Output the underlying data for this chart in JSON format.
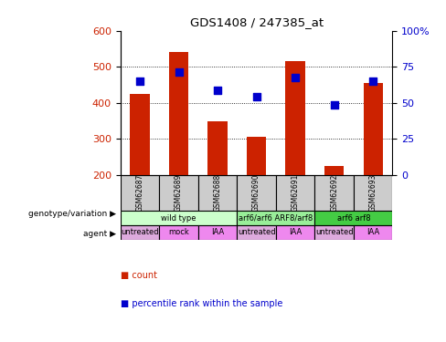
{
  "title": "GDS1408 / 247385_at",
  "samples": [
    "GSM62687",
    "GSM62689",
    "GSM62688",
    "GSM62690",
    "GSM62691",
    "GSM62692",
    "GSM62693"
  ],
  "bar_bottom": 200,
  "bar_tops": [
    425,
    540,
    348,
    305,
    515,
    225,
    455
  ],
  "percentile_values": [
    460,
    485,
    435,
    418,
    470,
    395,
    460
  ],
  "ylim_left": [
    200,
    600
  ],
  "yticks_left": [
    200,
    300,
    400,
    500,
    600
  ],
  "ylim_right": [
    0,
    100
  ],
  "yticks_right": [
    0,
    25,
    50,
    75,
    100
  ],
  "yticklabels_right": [
    "0",
    "25",
    "50",
    "75",
    "100%"
  ],
  "bar_color": "#cc2200",
  "percentile_color": "#0000cc",
  "genotype_groups": [
    {
      "label": "wild type",
      "start": 0,
      "end": 3,
      "color": "#ccffcc"
    },
    {
      "label": "arf6/arf6 ARF8/arf8",
      "start": 3,
      "end": 5,
      "color": "#99ee99"
    },
    {
      "label": "arf6 arf8",
      "start": 5,
      "end": 7,
      "color": "#44cc44"
    }
  ],
  "agent_groups": [
    {
      "label": "untreated",
      "start": 0,
      "end": 1,
      "color": "#ddaadd"
    },
    {
      "label": "mock",
      "start": 1,
      "end": 2,
      "color": "#ee88ee"
    },
    {
      "label": "IAA",
      "start": 2,
      "end": 3,
      "color": "#ee88ee"
    },
    {
      "label": "untreated",
      "start": 3,
      "end": 4,
      "color": "#ddaadd"
    },
    {
      "label": "IAA",
      "start": 4,
      "end": 5,
      "color": "#ee88ee"
    },
    {
      "label": "untreated",
      "start": 5,
      "end": 6,
      "color": "#ddaadd"
    },
    {
      "label": "IAA",
      "start": 6,
      "end": 7,
      "color": "#ee88ee"
    }
  ],
  "legend_count_color": "#cc2200",
  "legend_percentile_color": "#0000cc",
  "genotype_label": "genotype/variation",
  "agent_label": "agent",
  "tick_label_color_left": "#cc2200",
  "tick_label_color_right": "#0000cc",
  "sample_box_color": "#cccccc",
  "bar_width": 0.5
}
